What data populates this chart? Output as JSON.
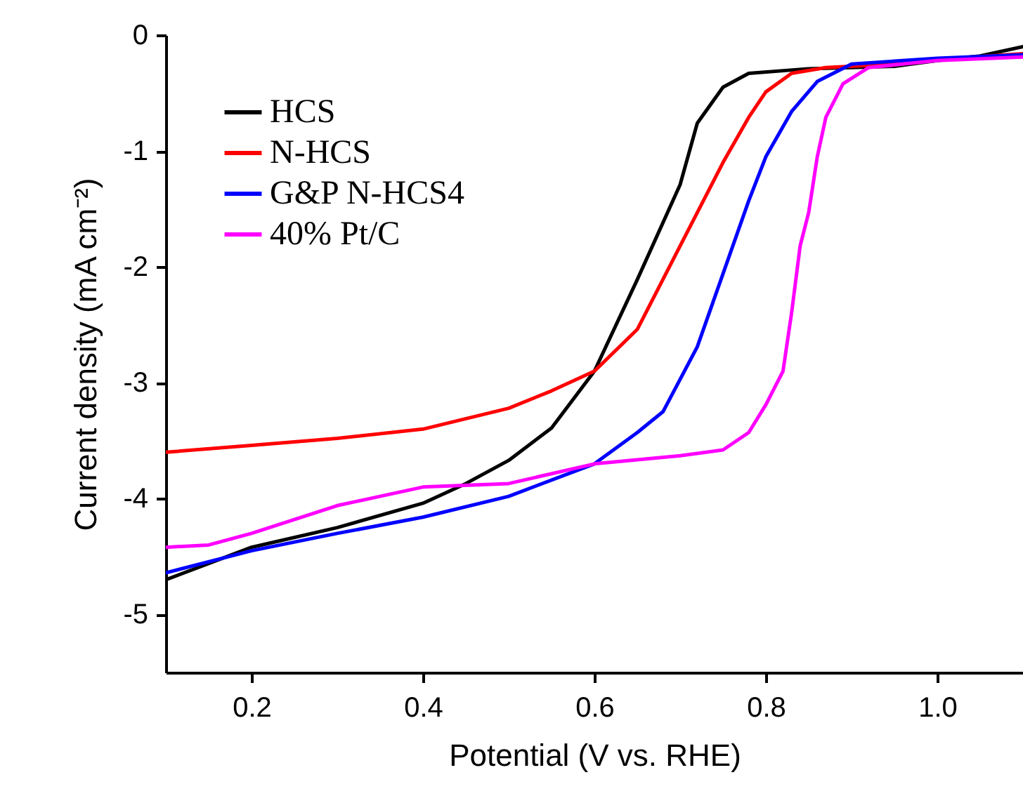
{
  "chart_data": {
    "type": "line",
    "xlabel": "Potential (V vs. RHE)",
    "ylabel": "Current density (mA cm⁻²)",
    "xlim": [
      0.1,
      1.1
    ],
    "xticks": [
      0.2,
      0.4,
      0.6,
      0.8,
      {
        "value": 1.0,
        "label": "1.0"
      }
    ],
    "ylim": [
      -5.5,
      0
    ],
    "yticks": [
      0,
      -1,
      -2,
      -3,
      -4,
      -5
    ],
    "grid": false,
    "legend": "top left",
    "marker": "none",
    "line_style": "solid",
    "series": [
      {
        "name": "HCS",
        "color": "#000000",
        "x": [
          0.1,
          0.2,
          0.3,
          0.4,
          0.45,
          0.5,
          0.55,
          0.6,
          0.65,
          0.7,
          0.72,
          0.75,
          0.78,
          0.85,
          0.95,
          1.0,
          1.05,
          1.1
        ],
        "values": [
          -4.7,
          -4.42,
          -4.25,
          -4.04,
          -3.87,
          -3.67,
          -3.39,
          -2.9,
          -2.11,
          -1.29,
          -0.76,
          -0.45,
          -0.33,
          -0.29,
          -0.27,
          -0.22,
          -0.18,
          -0.1
        ]
      },
      {
        "name": "N-HCS",
        "color": "#ff0000",
        "x": [
          0.1,
          0.2,
          0.3,
          0.4,
          0.5,
          0.55,
          0.6,
          0.65,
          0.7,
          0.75,
          0.78,
          0.8,
          0.83,
          0.87,
          0.95,
          1.0,
          1.1
        ],
        "values": [
          -3.6,
          -3.54,
          -3.48,
          -3.4,
          -3.22,
          -3.07,
          -2.9,
          -2.54,
          -1.82,
          -1.1,
          -0.71,
          -0.49,
          -0.33,
          -0.28,
          -0.25,
          -0.21,
          -0.16
        ]
      },
      {
        "name": "G&P N-HCS4",
        "color": "#0000ff",
        "x": [
          0.1,
          0.2,
          0.3,
          0.4,
          0.5,
          0.6,
          0.65,
          0.68,
          0.72,
          0.75,
          0.78,
          0.8,
          0.83,
          0.86,
          0.9,
          1.0,
          1.1
        ],
        "values": [
          -4.64,
          -4.45,
          -4.3,
          -4.16,
          -3.98,
          -3.7,
          -3.43,
          -3.25,
          -2.69,
          -2.06,
          -1.43,
          -1.05,
          -0.66,
          -0.4,
          -0.25,
          -0.2,
          -0.17
        ]
      },
      {
        "name": "40% Pt/C",
        "color": "#ff00ff",
        "x": [
          0.1,
          0.15,
          0.2,
          0.3,
          0.4,
          0.5,
          0.6,
          0.7,
          0.75,
          0.78,
          0.8,
          0.82,
          0.83,
          0.84,
          0.85,
          0.86,
          0.87,
          0.89,
          0.92,
          1.0,
          1.1
        ],
        "values": [
          -4.42,
          -4.4,
          -4.3,
          -4.06,
          -3.9,
          -3.87,
          -3.7,
          -3.63,
          -3.58,
          -3.43,
          -3.19,
          -2.9,
          -2.4,
          -1.82,
          -1.53,
          -1.05,
          -0.71,
          -0.42,
          -0.28,
          -0.22,
          -0.19
        ]
      }
    ]
  }
}
